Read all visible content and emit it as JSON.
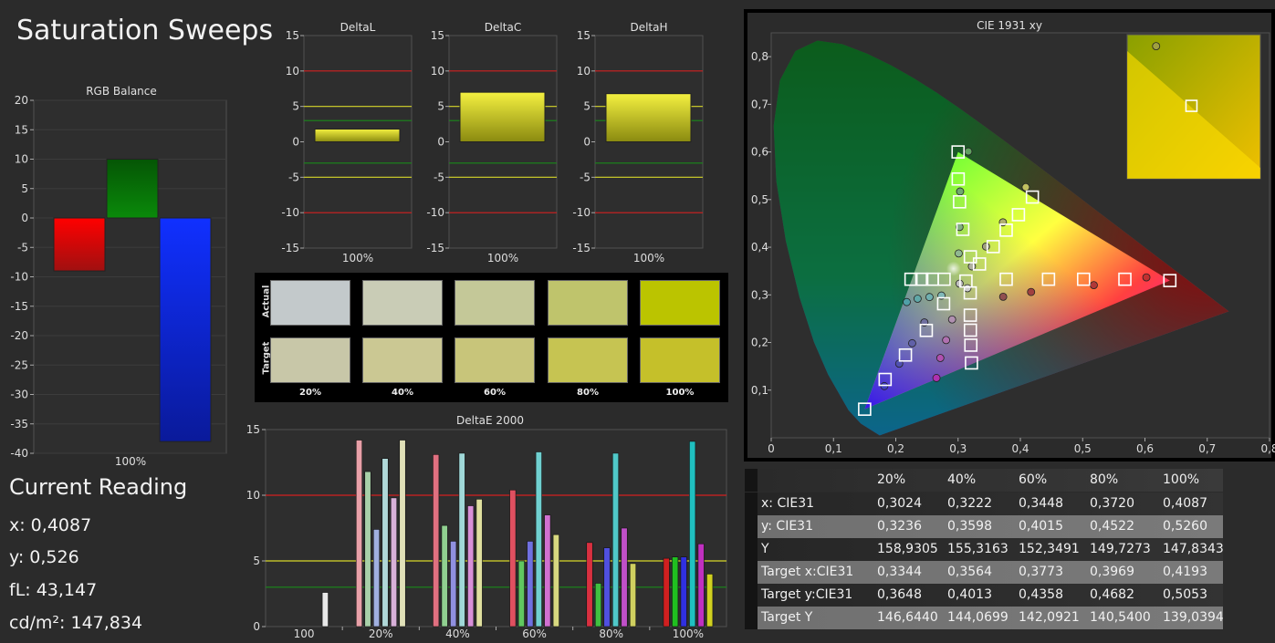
{
  "title": "Saturation Sweeps",
  "current_reading": {
    "title": "Current Reading",
    "x": "x: 0,4087",
    "y": "y: 0,526",
    "fl": "fL: 43,147",
    "cdm2": "cd/m²: 147,834"
  },
  "colors": {
    "red_line": "#d42020",
    "yellow_line": "#d8d82a",
    "green_line": "#1a8a1a",
    "plot_bg": "#2e2e2e",
    "grid": "#3c3c3c"
  },
  "chart_data": [
    {
      "id": "rgb-balance",
      "type": "bar",
      "title": "RGB Balance",
      "categories": [
        "100%"
      ],
      "series": [
        {
          "name": "Red",
          "values": [
            -9
          ]
        },
        {
          "name": "Green",
          "values": [
            10
          ]
        },
        {
          "name": "Blue",
          "values": [
            -38
          ]
        }
      ],
      "ylim": [
        -40,
        20
      ],
      "yticks": [
        "20",
        "15",
        "10",
        "5",
        "0",
        "-5",
        "-10",
        "-15",
        "-20",
        "-25",
        "-30",
        "-35",
        "-40"
      ]
    },
    {
      "id": "deltal",
      "type": "bar",
      "title": "DeltaL",
      "categories": [
        "100%"
      ],
      "values": [
        1.8
      ],
      "ylim": [
        -15,
        15
      ],
      "yticks": [
        "15",
        "10",
        "5",
        "0",
        "-5",
        "-10",
        "-15"
      ],
      "reference_lines": [
        10,
        -10,
        5,
        -5,
        3,
        -3
      ]
    },
    {
      "id": "deltac",
      "type": "bar",
      "title": "DeltaC",
      "categories": [
        "100%"
      ],
      "values": [
        7
      ],
      "ylim": [
        -15,
        15
      ],
      "yticks": [
        "15",
        "10",
        "5",
        "0",
        "-5",
        "-10",
        "-15"
      ],
      "reference_lines": [
        10,
        -10,
        5,
        -5,
        3,
        -3
      ]
    },
    {
      "id": "deltah",
      "type": "bar",
      "title": "DeltaH",
      "categories": [
        "100%"
      ],
      "values": [
        6.8
      ],
      "ylim": [
        -15,
        15
      ],
      "yticks": [
        "15",
        "10",
        "5",
        "0",
        "-5",
        "-10",
        "-15"
      ],
      "reference_lines": [
        10,
        -10,
        5,
        -5,
        3,
        -3
      ]
    },
    {
      "id": "swatches",
      "type": "table",
      "row_labels": [
        "Actual",
        "Target"
      ],
      "columns": [
        "20%",
        "40%",
        "60%",
        "80%",
        "100%"
      ],
      "actual_colors": [
        "#c3c9cb",
        "#c9ccb6",
        "#c4c898",
        "#bfc46c",
        "#bbc400"
      ],
      "target_colors": [
        "#c8c7a8",
        "#cbc893",
        "#c8c57a",
        "#c6c452",
        "#c5c02a"
      ]
    },
    {
      "id": "deltae-2000",
      "type": "bar",
      "title": "DeltaE 2000",
      "categories": [
        "100",
        "20%",
        "40%",
        "60%",
        "80%",
        "100%"
      ],
      "ylim": [
        0,
        15
      ],
      "yticks": [
        "15",
        "10",
        "5",
        "0"
      ],
      "reference_lines": [
        10,
        5,
        3
      ],
      "groups": [
        [
          {
            "c": "#e8e8e8",
            "v": 2.6
          }
        ],
        [
          {
            "c": "#e8a0a8",
            "v": 14.2
          },
          {
            "c": "#a8d0a8",
            "v": 11.8
          },
          {
            "c": "#a0b0e0",
            "v": 7.4
          },
          {
            "c": "#b0d8d8",
            "v": 12.8
          },
          {
            "c": "#d8b0d8",
            "v": 9.8
          },
          {
            "c": "#e0e0b8",
            "v": 14.2
          }
        ],
        [
          {
            "c": "#e07080",
            "v": 13.1
          },
          {
            "c": "#90d090",
            "v": 7.7
          },
          {
            "c": "#9090e0",
            "v": 6.5
          },
          {
            "c": "#a0d8d8",
            "v": 13.2
          },
          {
            "c": "#d890d8",
            "v": 9.2
          },
          {
            "c": "#e0e0a0",
            "v": 9.7
          }
        ],
        [
          {
            "c": "#e05060",
            "v": 10.4
          },
          {
            "c": "#60c860",
            "v": 5.0
          },
          {
            "c": "#7070e0",
            "v": 6.5
          },
          {
            "c": "#70d0d0",
            "v": 13.3
          },
          {
            "c": "#d070d0",
            "v": 8.5
          },
          {
            "c": "#d8d880",
            "v": 7.0
          }
        ],
        [
          {
            "c": "#d83040",
            "v": 6.4
          },
          {
            "c": "#40c040",
            "v": 3.3
          },
          {
            "c": "#5050e0",
            "v": 6.0
          },
          {
            "c": "#50c8c8",
            "v": 13.2
          },
          {
            "c": "#c050c8",
            "v": 7.5
          },
          {
            "c": "#d0d060",
            "v": 4.8
          }
        ],
        [
          {
            "c": "#d02020",
            "v": 5.2
          },
          {
            "c": "#20c020",
            "v": 5.3
          },
          {
            "c": "#3030e0",
            "v": 5.3
          },
          {
            "c": "#20c0c0",
            "v": 14.1
          },
          {
            "c": "#c030c0",
            "v": 6.3
          },
          {
            "c": "#d0d020",
            "v": 4.0
          }
        ]
      ]
    },
    {
      "id": "cie",
      "type": "scatter",
      "title": "CIE 1931 xy",
      "xlim": [
        0,
        0.8
      ],
      "ylim": [
        0,
        0.85
      ],
      "xticks": [
        "0",
        "0,1",
        "0,2",
        "0,3",
        "0,4",
        "0,5",
        "0,6",
        "0,7",
        "0,8"
      ],
      "yticks": [
        "0,1",
        "0,2",
        "0,3",
        "0,4",
        "0,5",
        "0,6",
        "0,7",
        "0,8"
      ],
      "gamut": [
        [
          0.64,
          0.33
        ],
        [
          0.3,
          0.6
        ],
        [
          0.15,
          0.06
        ]
      ],
      "targets": [
        [
          0.64,
          0.33
        ],
        [
          0.3,
          0.6
        ],
        [
          0.15,
          0.06
        ],
        [
          0.2244,
          0.3328
        ],
        [
          0.2418,
          0.3328
        ],
        [
          0.2588,
          0.3328
        ],
        [
          0.2776,
          0.3328
        ],
        [
          0.3127,
          0.329
        ],
        [
          0.3773,
          0.3328
        ],
        [
          0.4452,
          0.3328
        ],
        [
          0.5015,
          0.3328
        ],
        [
          0.5678,
          0.3328
        ],
        [
          0.3002,
          0.5432
        ],
        [
          0.3024,
          0.4953
        ],
        [
          0.3076,
          0.4375
        ],
        [
          0.3197,
          0.3799
        ],
        [
          0.3344,
          0.3648
        ],
        [
          0.3564,
          0.4013
        ],
        [
          0.3773,
          0.4358
        ],
        [
          0.3969,
          0.4682
        ],
        [
          0.4193,
          0.5053
        ],
        [
          0.2768,
          0.2814
        ],
        [
          0.249,
          0.2254
        ],
        [
          0.2155,
          0.1737
        ],
        [
          0.1829,
          0.1225
        ],
        [
          0.3195,
          0.3041
        ],
        [
          0.3196,
          0.2573
        ],
        [
          0.3198,
          0.2259
        ],
        [
          0.3205,
          0.1944
        ],
        [
          0.3215,
          0.1571
        ]
      ],
      "measured": [
        {
          "x": 0.6023,
          "y": 0.3367,
          "c": "#c03030"
        },
        {
          "x": 0.5179,
          "y": 0.3204,
          "c": "#b03838"
        },
        {
          "x": 0.4172,
          "y": 0.306,
          "c": "#a04040"
        },
        {
          "x": 0.3724,
          "y": 0.296,
          "c": "#905050"
        },
        {
          "x": 0.3165,
          "y": 0.601,
          "c": "#60a060"
        },
        {
          "x": 0.3033,
          "y": 0.517,
          "c": "#70a870"
        },
        {
          "x": 0.3023,
          "y": 0.4425,
          "c": "#80b080"
        },
        {
          "x": 0.301,
          "y": 0.387,
          "c": "#90b890"
        },
        {
          "x": 0.4087,
          "y": 0.526,
          "c": "#c0c060"
        },
        {
          "x": 0.372,
          "y": 0.4522,
          "c": "#b0b070"
        },
        {
          "x": 0.3448,
          "y": 0.4015,
          "c": "#a0a080"
        },
        {
          "x": 0.3222,
          "y": 0.3598,
          "c": "#b0b0a0"
        },
        {
          "x": 0.3024,
          "y": 0.3236,
          "c": "#c0c0c0"
        },
        {
          "x": 0.1816,
          "y": 0.1085,
          "c": "#4040c0"
        },
        {
          "x": 0.2055,
          "y": 0.1556,
          "c": "#5050b0"
        },
        {
          "x": 0.2263,
          "y": 0.1985,
          "c": "#6060a8"
        },
        {
          "x": 0.2459,
          "y": 0.2421,
          "c": "#7070a0"
        },
        {
          "x": 0.2176,
          "y": 0.2849,
          "c": "#50a0a8"
        },
        {
          "x": 0.235,
          "y": 0.292,
          "c": "#60a8a8"
        },
        {
          "x": 0.2541,
          "y": 0.2954,
          "c": "#70b0b0"
        },
        {
          "x": 0.2733,
          "y": 0.2985,
          "c": "#80b8b8"
        },
        {
          "x": 0.2653,
          "y": 0.1255,
          "c": "#b030b0"
        },
        {
          "x": 0.2715,
          "y": 0.1675,
          "c": "#b050b0"
        },
        {
          "x": 0.2808,
          "y": 0.2051,
          "c": "#b070b0"
        },
        {
          "x": 0.2904,
          "y": 0.2484,
          "c": "#b090b0"
        },
        {
          "x": 0.315,
          "y": 0.314,
          "c": "#d0d0d0"
        }
      ],
      "inset": {
        "targets": [
          [
            0.4193,
            0.5053
          ]
        ],
        "measured": [
          {
            "x": 0.4087,
            "y": 0.526,
            "c": "#a0a040"
          }
        ]
      }
    }
  ],
  "table": {
    "headers": [
      "",
      "20%",
      "40%",
      "60%",
      "80%",
      "100%"
    ],
    "rows": [
      {
        "label": "x: CIE31",
        "values": [
          "0,3024",
          "0,3222",
          "0,3448",
          "0,3720",
          "0,4087"
        ]
      },
      {
        "label": "y: CIE31",
        "values": [
          "0,3236",
          "0,3598",
          "0,4015",
          "0,4522",
          "0,5260"
        ]
      },
      {
        "label": "Y",
        "values": [
          "158,9305",
          "155,3163",
          "152,3491",
          "149,7273",
          "147,8343"
        ]
      },
      {
        "label": "Target x:CIE31",
        "values": [
          "0,3344",
          "0,3564",
          "0,3773",
          "0,3969",
          "0,4193"
        ]
      },
      {
        "label": "Target y:CIE31",
        "values": [
          "0,3648",
          "0,4013",
          "0,4358",
          "0,4682",
          "0,5053"
        ]
      },
      {
        "label": "Target Y",
        "values": [
          "146,6440",
          "144,0699",
          "142,0921",
          "140,5400",
          "139,0394"
        ]
      }
    ]
  }
}
